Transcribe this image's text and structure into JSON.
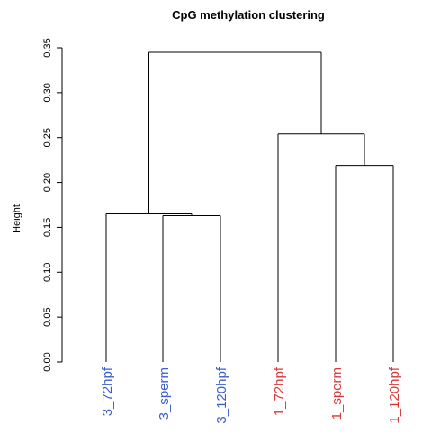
{
  "chart_data": {
    "type": "dendrogram",
    "title": "CpG methylation clustering",
    "ylabel": "Height",
    "xlabel": "",
    "ylim": [
      0,
      0.35
    ],
    "yticks": [
      "0.00",
      "0.05",
      "0.10",
      "0.15",
      "0.20",
      "0.25",
      "0.30",
      "0.35"
    ],
    "leaves": [
      {
        "label": "3_72hpf",
        "color": "#3a5fcd"
      },
      {
        "label": "3_sperm",
        "color": "#3a5fcd"
      },
      {
        "label": "3_120hpf",
        "color": "#3a5fcd"
      },
      {
        "label": "1_72hpf",
        "color": "#d6393a"
      },
      {
        "label": "1_sperm",
        "color": "#d6393a"
      },
      {
        "label": "1_120hpf",
        "color": "#d6393a"
      }
    ],
    "merges": [
      {
        "left": "3_sperm",
        "right": "3_120hpf",
        "height": 0.163
      },
      {
        "left": "3_72hpf",
        "right": "(3_sperm,3_120hpf)",
        "height": 0.165
      },
      {
        "left": "1_sperm",
        "right": "1_120hpf",
        "height": 0.219
      },
      {
        "left": "1_72hpf",
        "right": "(1_sperm,1_120hpf)",
        "height": 0.254
      },
      {
        "left": "group_3",
        "right": "group_1",
        "height": 0.345
      }
    ]
  }
}
